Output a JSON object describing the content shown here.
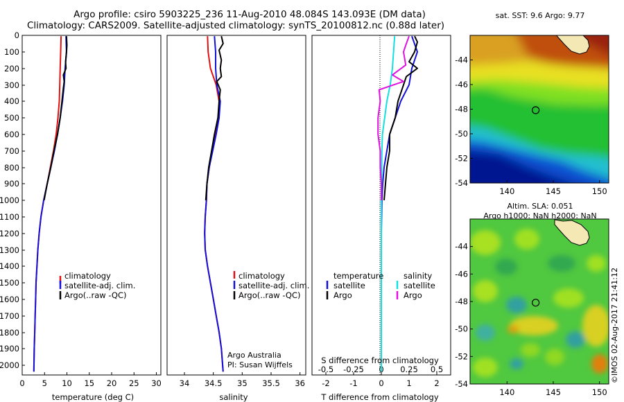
{
  "header": {
    "title_line1": "Argo profile: csiro 5903225_236 11-Aug-2010 48.084S 143.093E (DM data)",
    "title_line2": "Climatology: CARS2009. Satellite-adjusted climatology: synTS_20100812.nc (0.88d later)"
  },
  "colors": {
    "climatology": "#e01010",
    "satellite": "#1010d8",
    "argo": "#000000",
    "sat_diff_salinity": "#10e0e0",
    "argo_diff_salinity": "#e010e0"
  },
  "chart_data": [
    {
      "id": "temperature",
      "type": "line",
      "xlabel": "temperature (deg C)",
      "xlim": [
        0,
        31
      ],
      "xticks": [
        0,
        5,
        10,
        15,
        20,
        25,
        30
      ],
      "ylim": [
        2060,
        0
      ],
      "yticks": [
        0,
        100,
        200,
        300,
        400,
        500,
        600,
        700,
        800,
        900,
        1000,
        1100,
        1200,
        1300,
        1400,
        1500,
        1600,
        1700,
        1800,
        1900,
        2000
      ],
      "legend": [
        "climatology",
        "satellite-adj. clim.",
        "Argo(..raw -QC)"
      ],
      "series": [
        {
          "name": "climatology",
          "color": "#e01010",
          "points": [
            [
              8.7,
              5
            ],
            [
              8.6,
              100
            ],
            [
              8.5,
              200
            ],
            [
              8.4,
              300
            ],
            [
              8.3,
              400
            ],
            [
              8.0,
              500
            ],
            [
              7.6,
              600
            ],
            [
              7.0,
              700
            ],
            [
              6.3,
              800
            ],
            [
              5.6,
              900
            ],
            [
              4.8,
              1000
            ],
            [
              4.2,
              1100
            ],
            [
              3.8,
              1200
            ],
            [
              3.5,
              1300
            ],
            [
              3.3,
              1400
            ],
            [
              3.1,
              1500
            ],
            [
              3.0,
              1600
            ],
            [
              2.9,
              1700
            ],
            [
              2.8,
              1800
            ],
            [
              2.7,
              1900
            ],
            [
              2.6,
              2040
            ]
          ]
        },
        {
          "name": "satellite-adj. clim.",
          "color": "#1010d8",
          "points": [
            [
              9.8,
              5
            ],
            [
              9.9,
              100
            ],
            [
              9.6,
              200
            ],
            [
              9.4,
              300
            ],
            [
              9.0,
              400
            ],
            [
              8.5,
              500
            ],
            [
              7.9,
              600
            ],
            [
              7.2,
              700
            ],
            [
              6.4,
              800
            ],
            [
              5.6,
              900
            ],
            [
              4.8,
              1000
            ],
            [
              4.2,
              1100
            ],
            [
              3.8,
              1200
            ],
            [
              3.5,
              1300
            ],
            [
              3.3,
              1400
            ],
            [
              3.1,
              1500
            ],
            [
              3.0,
              1600
            ],
            [
              2.9,
              1700
            ],
            [
              2.8,
              1800
            ],
            [
              2.7,
              1900
            ],
            [
              2.6,
              2040
            ]
          ]
        },
        {
          "name": "Argo(..raw -QC)",
          "color": "#000000",
          "points": [
            [
              9.9,
              5
            ],
            [
              10.0,
              60
            ],
            [
              9.9,
              100
            ],
            [
              9.7,
              160
            ],
            [
              9.8,
              200
            ],
            [
              9.2,
              240
            ],
            [
              9.4,
              280
            ],
            [
              9.2,
              320
            ],
            [
              8.9,
              400
            ],
            [
              8.5,
              500
            ],
            [
              7.9,
              600
            ],
            [
              7.1,
              700
            ],
            [
              6.4,
              800
            ],
            [
              5.6,
              900
            ],
            [
              4.9,
              1000
            ]
          ]
        }
      ]
    },
    {
      "id": "salinity",
      "type": "line",
      "xlabel": "salinity",
      "xlim": [
        33.7,
        36.1
      ],
      "xticks": [
        34,
        34.5,
        35,
        35.5,
        36
      ],
      "xtick_labels": [
        "34",
        "34.5",
        "35",
        "35.5",
        "36"
      ],
      "ylim": [
        2060,
        0
      ],
      "legend": [
        "climatology",
        "satellite-adj. clim.",
        "Argo(..raw -QC)"
      ],
      "annotation": [
        "Argo Australia",
        "PI: Susan Wijffels"
      ],
      "series": [
        {
          "name": "climatology",
          "color": "#e01010",
          "points": [
            [
              34.4,
              5
            ],
            [
              34.41,
              100
            ],
            [
              34.45,
              200
            ],
            [
              34.55,
              300
            ],
            [
              34.6,
              400
            ],
            [
              34.6,
              500
            ],
            [
              34.54,
              600
            ],
            [
              34.48,
              700
            ],
            [
              34.43,
              800
            ],
            [
              34.39,
              900
            ],
            [
              34.38,
              1000
            ],
            [
              34.36,
              1100
            ],
            [
              34.35,
              1200
            ],
            [
              34.36,
              1300
            ],
            [
              34.4,
              1400
            ],
            [
              34.45,
              1500
            ],
            [
              34.5,
              1600
            ],
            [
              34.55,
              1700
            ],
            [
              34.6,
              1800
            ],
            [
              34.64,
              1900
            ],
            [
              34.67,
              2040
            ]
          ]
        },
        {
          "name": "satellite-adj. clim.",
          "color": "#1010d8",
          "points": [
            [
              34.52,
              5
            ],
            [
              34.54,
              100
            ],
            [
              34.54,
              200
            ],
            [
              34.56,
              300
            ],
            [
              34.62,
              400
            ],
            [
              34.6,
              500
            ],
            [
              34.55,
              600
            ],
            [
              34.49,
              700
            ],
            [
              34.43,
              800
            ],
            [
              34.39,
              900
            ],
            [
              34.38,
              1000
            ],
            [
              34.36,
              1100
            ],
            [
              34.35,
              1200
            ],
            [
              34.36,
              1300
            ],
            [
              34.4,
              1400
            ],
            [
              34.45,
              1500
            ],
            [
              34.5,
              1600
            ],
            [
              34.55,
              1700
            ],
            [
              34.6,
              1800
            ],
            [
              34.64,
              1900
            ],
            [
              34.67,
              2040
            ]
          ]
        },
        {
          "name": "Argo(..raw -QC)",
          "color": "#000000",
          "points": [
            [
              34.64,
              5
            ],
            [
              34.67,
              50
            ],
            [
              34.6,
              90
            ],
            [
              34.64,
              150
            ],
            [
              34.62,
              200
            ],
            [
              34.64,
              250
            ],
            [
              34.56,
              280
            ],
            [
              34.62,
              330
            ],
            [
              34.6,
              400
            ],
            [
              34.58,
              500
            ],
            [
              34.52,
              600
            ],
            [
              34.47,
              700
            ],
            [
              34.42,
              800
            ],
            [
              34.39,
              900
            ],
            [
              34.37,
              1000
            ]
          ]
        }
      ]
    },
    {
      "id": "difference",
      "type": "line",
      "xlabel": "T difference from climatology",
      "xlabel_top": "S difference from climatology",
      "xlim": [
        -2.5,
        2.5
      ],
      "xticks": [
        -2,
        -1,
        0,
        1,
        2
      ],
      "xtick_labels": [
        "-2",
        "-1",
        "0",
        "1",
        "2"
      ],
      "sticks": [
        -0.5,
        -0.25,
        0,
        0.25,
        0.5
      ],
      "stick_labels": [
        "-0.5",
        "-0.25",
        "0",
        "0.25",
        "0.5"
      ],
      "slim": [
        -0.625,
        0.625
      ],
      "ylim": [
        2060,
        0
      ],
      "legend_headers": [
        "temperature",
        "salinity"
      ],
      "legend_left": [
        "satellite",
        "Argo"
      ],
      "legend_right": [
        "satellite",
        "Argo"
      ],
      "series": [
        {
          "name": "satellite",
          "group": "temperature",
          "color": "#1010d8",
          "points": [
            [
              1.1,
              5
            ],
            [
              1.3,
              100
            ],
            [
              1.1,
              200
            ],
            [
              1.0,
              300
            ],
            [
              0.7,
              400
            ],
            [
              0.5,
              500
            ],
            [
              0.3,
              600
            ],
            [
              0.2,
              700
            ],
            [
              0.1,
              800
            ],
            [
              0.05,
              900
            ],
            [
              0.02,
              1000
            ],
            [
              0,
              1200
            ],
            [
              0,
              1600
            ],
            [
              0,
              2040
            ]
          ]
        },
        {
          "name": "Argo",
          "group": "temperature",
          "color": "#000000",
          "points": [
            [
              1.2,
              5
            ],
            [
              1.3,
              40
            ],
            [
              1.2,
              100
            ],
            [
              1.0,
              160
            ],
            [
              1.3,
              200
            ],
            [
              0.9,
              250
            ],
            [
              0.8,
              300
            ],
            [
              0.6,
              400
            ],
            [
              0.5,
              500
            ],
            [
              0.3,
              600
            ],
            [
              0.3,
              700
            ],
            [
              0.2,
              800
            ],
            [
              0.15,
              900
            ],
            [
              0.1,
              1000
            ]
          ]
        },
        {
          "name": "satellite",
          "group": "salinity",
          "color": "#10e0e0",
          "points": [
            [
              0.12,
              5
            ],
            [
              0.11,
              100
            ],
            [
              0.1,
              200
            ],
            [
              0.08,
              300
            ],
            [
              0.05,
              400
            ],
            [
              0.03,
              500
            ],
            [
              0.01,
              600
            ],
            [
              0.005,
              700
            ],
            [
              0.003,
              800
            ],
            [
              0.002,
              900
            ],
            [
              0,
              1000
            ],
            [
              0,
              1200
            ],
            [
              0,
              1600
            ],
            [
              0,
              2040
            ]
          ]
        },
        {
          "name": "Argo",
          "group": "salinity",
          "color": "#e010e0",
          "points": [
            [
              0.25,
              5
            ],
            [
              0.22,
              60
            ],
            [
              0.2,
              100
            ],
            [
              0.22,
              180
            ],
            [
              0.1,
              240
            ],
            [
              0.2,
              280
            ],
            [
              -0.02,
              330
            ],
            [
              -0.01,
              400
            ],
            [
              -0.03,
              500
            ],
            [
              -0.03,
              600
            ],
            [
              -0.01,
              700
            ],
            [
              -0.01,
              800
            ],
            [
              0.0,
              900
            ],
            [
              0.0,
              1000
            ]
          ]
        }
      ]
    },
    {
      "id": "sst_map",
      "type": "heatmap",
      "title": "sat. SST: 9.6 Argo: 9.77",
      "xlim": [
        136,
        151
      ],
      "ylim": [
        -54,
        -42
      ],
      "xticks": [
        140,
        145,
        150
      ],
      "yticks": [
        -44,
        -46,
        -48,
        -50,
        -52,
        -54
      ],
      "marker": {
        "lon": 143.093,
        "lat": -48.084
      }
    },
    {
      "id": "sla_map",
      "type": "heatmap",
      "title_line1": "Altim. SLA: 0.051",
      "title_line2": "Argo h1000: NaN h2000: NaN",
      "xlim": [
        136,
        151
      ],
      "ylim": [
        -54,
        -42
      ],
      "xticks": [
        140,
        145,
        150
      ],
      "yticks": [
        -44,
        -46,
        -48,
        -50,
        -52,
        -54
      ],
      "marker": {
        "lon": 143.093,
        "lat": -48.084
      }
    }
  ],
  "footer": {
    "credit": "©IMOS 02-Aug-2017 21:41:12"
  }
}
